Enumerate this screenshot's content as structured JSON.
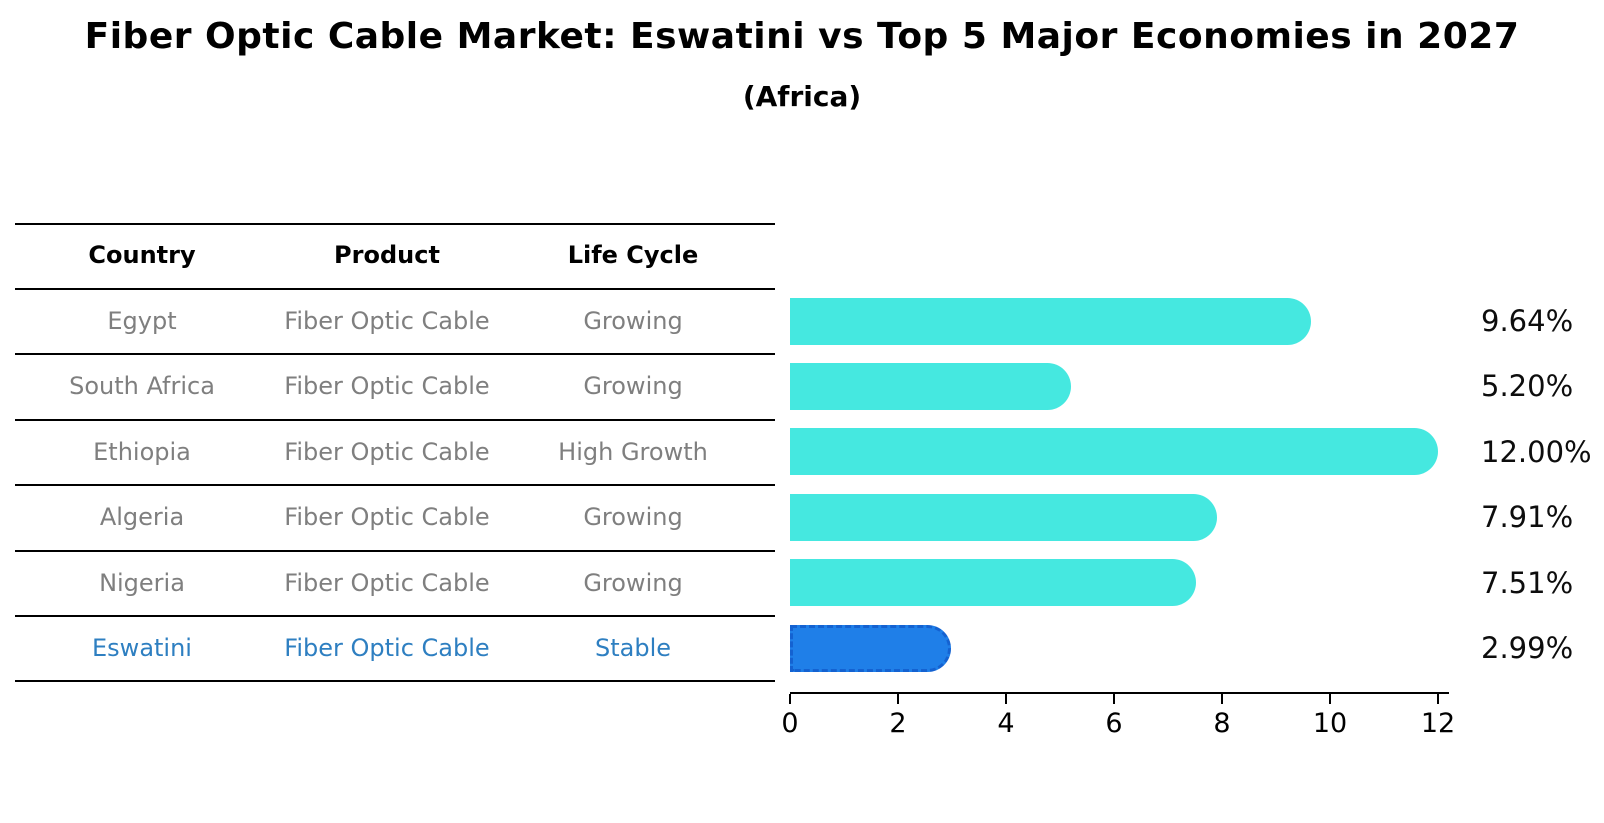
{
  "title": "Fiber Optic Cable Market: Eswatini vs Top 5 Major Economies in 2027",
  "subtitle": "(Africa)",
  "table": {
    "headers": [
      "Country",
      "Product",
      "Life Cycle"
    ],
    "rows": [
      {
        "country": "Egypt",
        "product": "Fiber Optic Cable",
        "life_cycle": "Growing",
        "highlight": false
      },
      {
        "country": "South Africa",
        "product": "Fiber Optic Cable",
        "life_cycle": "Growing",
        "highlight": false
      },
      {
        "country": "Ethiopia",
        "product": "Fiber Optic Cable",
        "life_cycle": "High Growth",
        "highlight": false
      },
      {
        "country": "Algeria",
        "product": "Fiber Optic Cable",
        "life_cycle": "Growing",
        "highlight": false
      },
      {
        "country": "Nigeria",
        "product": "Fiber Optic Cable",
        "life_cycle": "Growing",
        "highlight": false
      },
      {
        "country": "Eswatini",
        "product": "Fiber Optic Cable",
        "life_cycle": "Stable",
        "highlight": true
      }
    ]
  },
  "chart_data": {
    "type": "bar",
    "orientation": "horizontal",
    "title": "Fiber Optic Cable Market: Eswatini vs Top 5 Major Economies in 2027",
    "subtitle": "(Africa)",
    "categories": [
      "Egypt",
      "South Africa",
      "Ethiopia",
      "Algeria",
      "Nigeria",
      "Eswatini"
    ],
    "values": [
      9.64,
      5.2,
      12.0,
      7.91,
      7.51,
      2.99
    ],
    "value_labels": [
      "9.64%",
      "5.20%",
      "12.00%",
      "7.91%",
      "7.51%",
      "2.99%"
    ],
    "xlabel": "",
    "ylabel": "",
    "xticks": [
      0,
      2,
      4,
      6,
      8,
      10,
      12
    ],
    "xlim": [
      0,
      12.2
    ],
    "grid": false,
    "legend": false,
    "bar_color": "#45e8e0",
    "highlight_index": 5,
    "highlight_color": "#1f7fe8",
    "highlight_border_color": "#1462d1",
    "highlight_text_color": "#2e7fc1",
    "text_color": "#7f7f7f",
    "axis_color": "#000000"
  }
}
